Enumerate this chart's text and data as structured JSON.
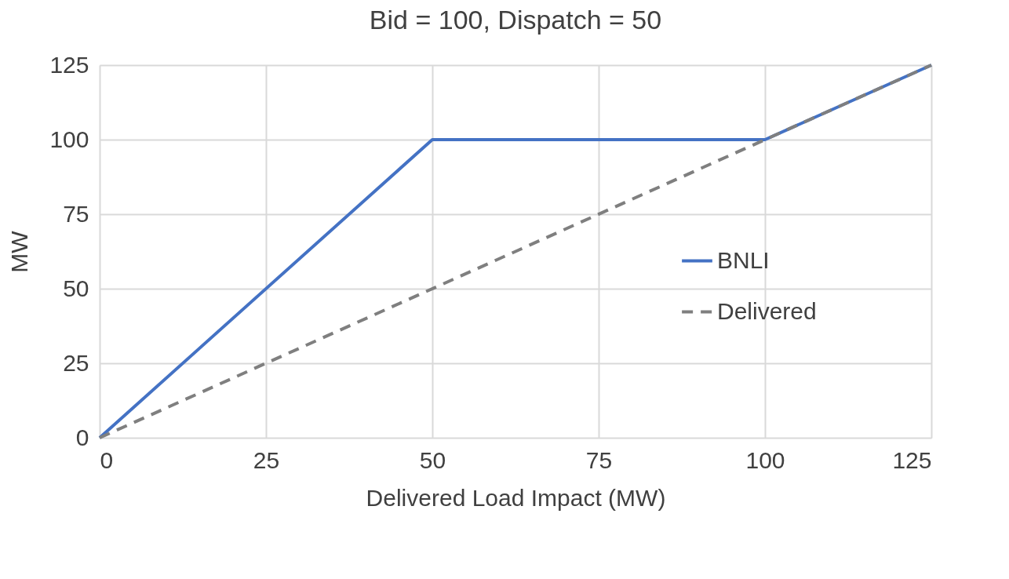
{
  "chart_data": {
    "type": "line",
    "title": "Bid = 100, Dispatch = 50",
    "xlabel": "Delivered Load Impact (MW)",
    "ylabel": "MW",
    "series": [
      {
        "name": "BNLI",
        "color": "#4472c4",
        "x": [
          0,
          50,
          100,
          125
        ],
        "values": [
          0,
          100,
          100,
          125
        ],
        "line_style": "solid"
      },
      {
        "name": "Delivered",
        "color": "#7f7f7f",
        "x": [
          0,
          125
        ],
        "values": [
          0,
          125
        ],
        "line_style": "dashed"
      }
    ],
    "xlim": [
      0,
      125
    ],
    "ylim": [
      0,
      125
    ],
    "xticks": [
      0,
      25,
      50,
      75,
      100,
      125
    ],
    "yticks": [
      0,
      25,
      50,
      75,
      100,
      125
    ],
    "grid": true,
    "legend": "right",
    "marker": "none"
  }
}
